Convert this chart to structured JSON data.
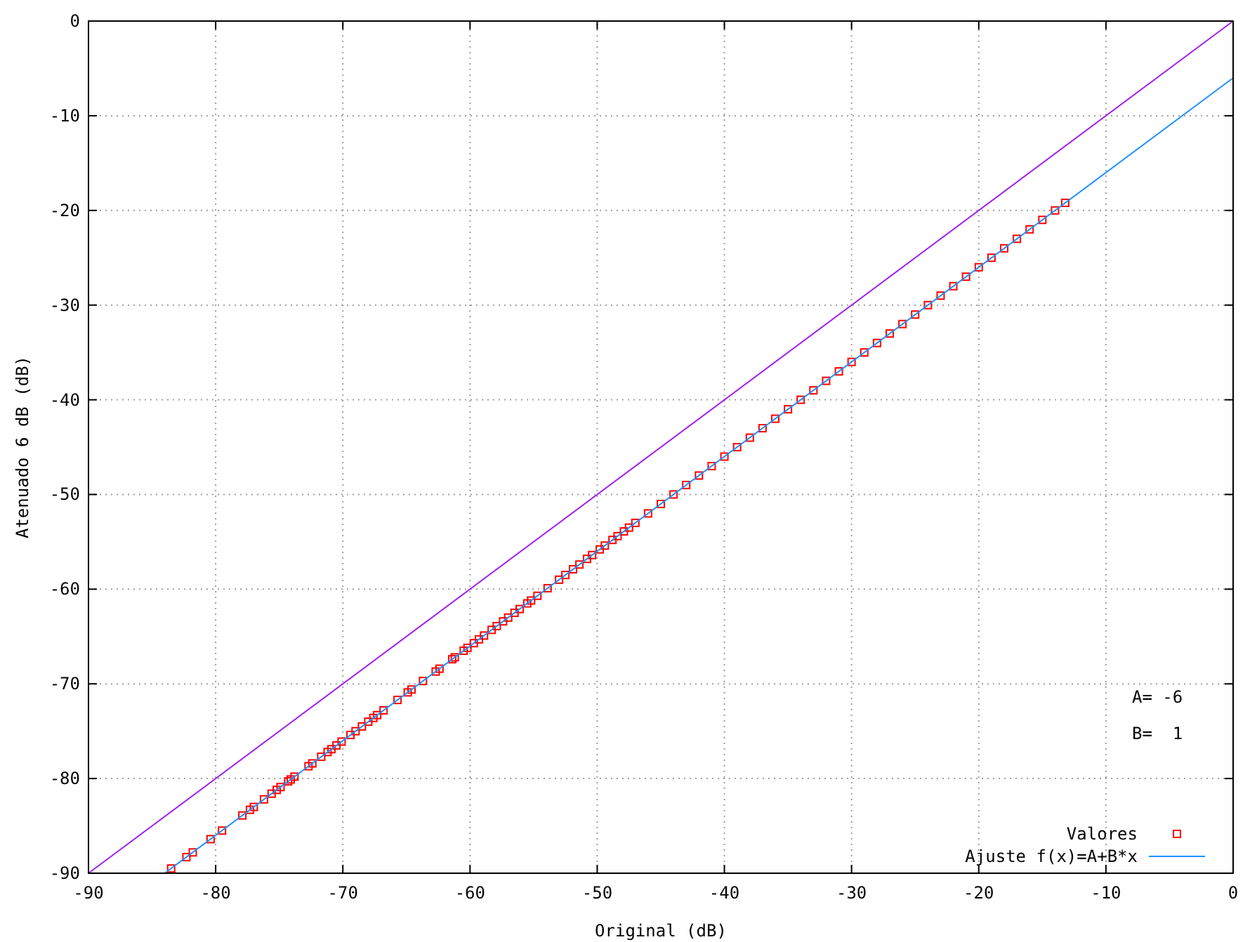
{
  "chart_data": {
    "type": "scatter",
    "xlabel": "Original (dB)",
    "ylabel": "Atenuado 6 dB (dB)",
    "xlim": [
      -90,
      0
    ],
    "ylim": [
      -90,
      0
    ],
    "xticks": [
      -90,
      -80,
      -70,
      -60,
      -50,
      -40,
      -30,
      -20,
      -10,
      0
    ],
    "yticks": [
      -90,
      -80,
      -70,
      -60,
      -50,
      -40,
      -30,
      -20,
      -10,
      0
    ],
    "grid": true,
    "legend": "bottom right",
    "annotations": [
      "A= -6",
      "B=  1"
    ],
    "series": [
      {
        "type": "line",
        "color": "#a020f0",
        "x": [
          -90,
          0
        ],
        "values": [
          -90,
          0
        ]
      },
      {
        "name": "Valores",
        "color": "#ff0000",
        "marker": "square",
        "x": [
          -83.5,
          -82.3,
          -81.8,
          -80.4,
          -79.5,
          -77.9,
          -77.3,
          -77.0,
          -76.2,
          -75.6,
          -75.2,
          -74.9,
          -74.3,
          -74.1,
          -73.8,
          -72.7,
          -72.4,
          -71.7,
          -71.2,
          -70.9,
          -70.5,
          -70.1,
          -69.4,
          -69.0,
          -68.5,
          -68.0,
          -67.6,
          -67.3,
          -66.8,
          -65.7,
          -64.9,
          -64.6,
          -63.7,
          -62.7,
          -62.4,
          -61.4,
          -61.2,
          -60.5,
          -60.2,
          -59.7,
          -59.3,
          -58.9,
          -58.3,
          -57.9,
          -57.4,
          -57.0,
          -56.5,
          -56.1,
          -55.5,
          -55.2,
          -54.7,
          -53.9,
          -53.0,
          -52.5,
          -51.9,
          -51.4,
          -50.8,
          -50.4,
          -49.8,
          -49.4,
          -48.8,
          -48.4,
          -47.9,
          -47.5,
          -47.0,
          -46,
          -45,
          -44,
          -43,
          -42,
          -41,
          -40,
          -39,
          -38,
          -37,
          -36,
          -35,
          -34,
          -33,
          -32,
          -31,
          -30,
          -29,
          -28,
          -27,
          -26,
          -25,
          -24,
          -23,
          -22,
          -21,
          -20,
          -19,
          -18,
          -17,
          -16,
          -15,
          -14,
          -13.2
        ],
        "values": [
          -89.5,
          -88.3,
          -87.8,
          -86.4,
          -85.5,
          -83.9,
          -83.3,
          -83.0,
          -82.2,
          -81.6,
          -81.2,
          -80.9,
          -80.3,
          -80.1,
          -79.8,
          -78.7,
          -78.4,
          -77.7,
          -77.2,
          -76.9,
          -76.5,
          -76.1,
          -75.4,
          -75.0,
          -74.5,
          -74.0,
          -73.6,
          -73.3,
          -72.8,
          -71.7,
          -70.9,
          -70.6,
          -69.7,
          -68.7,
          -68.4,
          -67.4,
          -67.2,
          -66.5,
          -66.2,
          -65.7,
          -65.3,
          -64.9,
          -64.3,
          -63.9,
          -63.4,
          -63.0,
          -62.5,
          -62.1,
          -61.5,
          -61.2,
          -60.7,
          -59.9,
          -59.0,
          -58.5,
          -57.9,
          -57.4,
          -56.8,
          -56.4,
          -55.8,
          -55.4,
          -54.8,
          -54.4,
          -53.9,
          -53.5,
          -53.0,
          -52,
          -51,
          -50,
          -49,
          -48,
          -47,
          -46,
          -45,
          -44,
          -43,
          -42,
          -41,
          -40,
          -39,
          -38,
          -37,
          -36,
          -35,
          -34,
          -33,
          -32,
          -31,
          -30,
          -29,
          -28,
          -27,
          -26,
          -25,
          -24,
          -23,
          -22,
          -21,
          -20,
          -19.2
        ]
      },
      {
        "type": "line",
        "name": "Ajuste f(x)=A+B*x",
        "color": "#1e90ff",
        "x": [
          -84,
          0
        ],
        "values": [
          -90,
          -6
        ]
      }
    ]
  }
}
